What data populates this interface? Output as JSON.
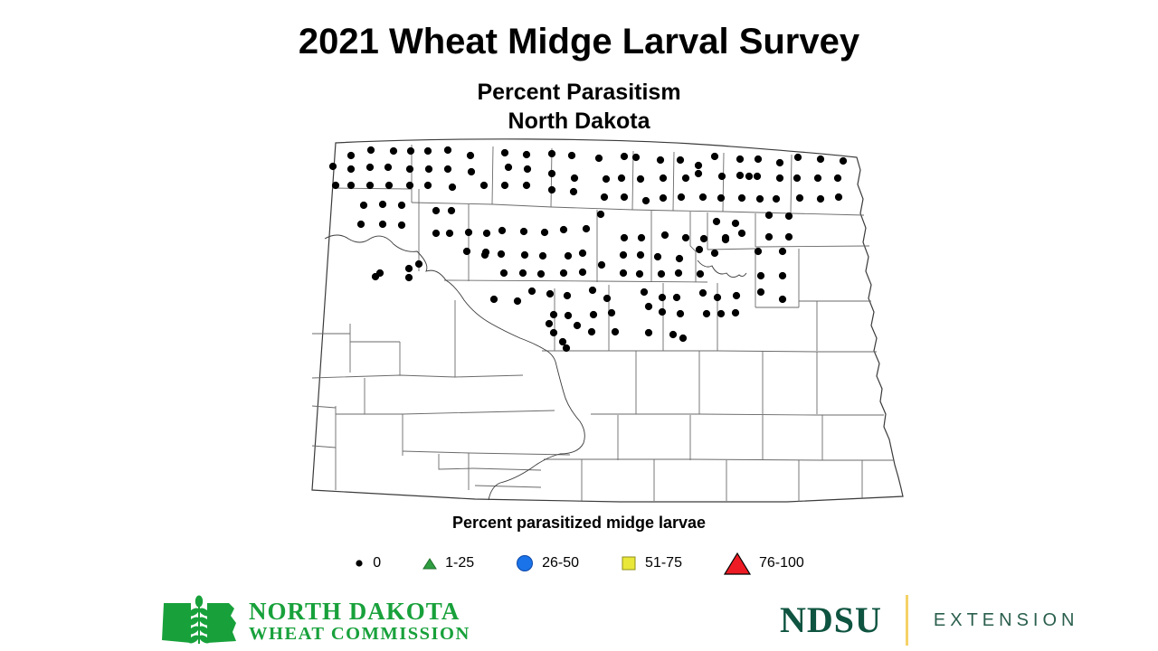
{
  "title": "2021 Wheat Midge Larval Survey",
  "subtitle_line1": "Percent Parasitism",
  "subtitle_line2": "North Dakota",
  "legend": {
    "title": "Percent parasitized midge larvae",
    "items": [
      {
        "symbol": "small-black-dot",
        "color": "#000000",
        "label": "0"
      },
      {
        "symbol": "small-green-triangle",
        "color": "#2f9e41",
        "label": "1-25"
      },
      {
        "symbol": "blue-circle",
        "color": "#1a73e8",
        "label": "26-50"
      },
      {
        "symbol": "yellow-square",
        "color": "#e9e73a",
        "label": "51-75"
      },
      {
        "symbol": "large-red-triangle",
        "color": "#ed1c24",
        "label": "76-100"
      }
    ]
  },
  "map": {
    "region": "North Dakota counties",
    "points_category": "0",
    "point_color": "#000000",
    "points": [
      [
        25,
        32
      ],
      [
        28,
        53
      ],
      [
        45,
        20
      ],
      [
        45,
        35
      ],
      [
        45,
        53
      ],
      [
        67,
        14
      ],
      [
        66,
        33
      ],
      [
        66,
        53
      ],
      [
        86,
        33
      ],
      [
        92,
        15
      ],
      [
        111,
        15
      ],
      [
        110,
        35
      ],
      [
        87,
        53
      ],
      [
        110,
        53
      ],
      [
        130,
        15
      ],
      [
        152,
        14
      ],
      [
        131,
        35
      ],
      [
        152,
        35
      ],
      [
        130,
        53
      ],
      [
        157,
        55
      ],
      [
        177,
        20
      ],
      [
        178,
        38
      ],
      [
        192,
        53
      ],
      [
        215,
        17
      ],
      [
        239,
        19
      ],
      [
        219,
        33
      ],
      [
        240,
        35
      ],
      [
        215,
        53
      ],
      [
        239,
        53
      ],
      [
        267,
        18
      ],
      [
        289,
        20
      ],
      [
        319,
        23
      ],
      [
        347,
        21
      ],
      [
        267,
        40
      ],
      [
        292,
        45
      ],
      [
        327,
        46
      ],
      [
        344,
        45
      ],
      [
        267,
        58
      ],
      [
        291,
        60
      ],
      [
        325,
        66
      ],
      [
        347,
        66
      ],
      [
        360,
        22
      ],
      [
        387,
        25
      ],
      [
        365,
        46
      ],
      [
        390,
        45
      ],
      [
        371,
        70
      ],
      [
        390,
        67
      ],
      [
        409,
        25
      ],
      [
        429,
        31
      ],
      [
        447,
        21
      ],
      [
        429,
        40
      ],
      [
        415,
        45
      ],
      [
        455,
        43
      ],
      [
        410,
        66
      ],
      [
        434,
        66
      ],
      [
        454,
        67
      ],
      [
        475,
        24
      ],
      [
        495,
        24
      ],
      [
        519,
        28
      ],
      [
        475,
        42
      ],
      [
        485,
        43
      ],
      [
        494,
        43
      ],
      [
        519,
        45
      ],
      [
        477,
        67
      ],
      [
        497,
        68
      ],
      [
        515,
        68
      ],
      [
        539,
        22
      ],
      [
        564,
        24
      ],
      [
        589,
        26
      ],
      [
        538,
        45
      ],
      [
        561,
        45
      ],
      [
        583,
        45
      ],
      [
        541,
        67
      ],
      [
        564,
        68
      ],
      [
        584,
        66
      ],
      [
        59,
        75
      ],
      [
        80,
        74
      ],
      [
        101,
        75
      ],
      [
        56,
        96
      ],
      [
        80,
        96
      ],
      [
        101,
        97
      ],
      [
        77,
        150
      ],
      [
        72,
        154
      ],
      [
        109,
        145
      ],
      [
        109,
        155
      ],
      [
        120,
        140
      ],
      [
        139,
        81
      ],
      [
        156,
        81
      ],
      [
        139,
        106
      ],
      [
        154,
        106
      ],
      [
        175,
        105
      ],
      [
        195,
        106
      ],
      [
        173,
        126
      ],
      [
        194,
        127
      ],
      [
        212,
        103
      ],
      [
        236,
        104
      ],
      [
        259,
        105
      ],
      [
        280,
        102
      ],
      [
        305,
        101
      ],
      [
        193,
        130
      ],
      [
        211,
        129
      ],
      [
        237,
        130
      ],
      [
        257,
        131
      ],
      [
        285,
        131
      ],
      [
        301,
        128
      ],
      [
        214,
        150
      ],
      [
        235,
        150
      ],
      [
        255,
        151
      ],
      [
        280,
        150
      ],
      [
        301,
        149
      ],
      [
        321,
        85
      ],
      [
        347,
        111
      ],
      [
        366,
        111
      ],
      [
        346,
        130
      ],
      [
        365,
        130
      ],
      [
        322,
        141
      ],
      [
        346,
        150
      ],
      [
        364,
        151
      ],
      [
        392,
        108
      ],
      [
        384,
        132
      ],
      [
        408,
        134
      ],
      [
        388,
        151
      ],
      [
        407,
        150
      ],
      [
        415,
        111
      ],
      [
        435,
        112
      ],
      [
        459,
        111
      ],
      [
        430,
        124
      ],
      [
        447,
        128
      ],
      [
        431,
        151
      ],
      [
        449,
        93
      ],
      [
        470,
        95
      ],
      [
        459,
        113
      ],
      [
        477,
        106
      ],
      [
        507,
        86
      ],
      [
        529,
        87
      ],
      [
        507,
        110
      ],
      [
        529,
        110
      ],
      [
        495,
        126
      ],
      [
        522,
        126
      ],
      [
        498,
        153
      ],
      [
        522,
        153
      ],
      [
        498,
        171
      ],
      [
        522,
        179
      ],
      [
        203,
        179
      ],
      [
        229,
        181
      ],
      [
        245,
        170
      ],
      [
        265,
        173
      ],
      [
        284,
        175
      ],
      [
        269,
        196
      ],
      [
        285,
        197
      ],
      [
        264,
        206
      ],
      [
        295,
        208
      ],
      [
        269,
        216
      ],
      [
        279,
        226
      ],
      [
        283,
        233
      ],
      [
        312,
        169
      ],
      [
        328,
        178
      ],
      [
        313,
        196
      ],
      [
        333,
        194
      ],
      [
        311,
        215
      ],
      [
        337,
        215
      ],
      [
        369,
        171
      ],
      [
        389,
        177
      ],
      [
        405,
        177
      ],
      [
        374,
        187
      ],
      [
        389,
        193
      ],
      [
        409,
        195
      ],
      [
        374,
        216
      ],
      [
        401,
        218
      ],
      [
        412,
        222
      ],
      [
        434,
        172
      ],
      [
        450,
        177
      ],
      [
        471,
        175
      ],
      [
        438,
        195
      ],
      [
        454,
        195
      ],
      [
        470,
        194
      ]
    ]
  },
  "footer": {
    "wheat_commission": {
      "line1": "NORTH DAKOTA",
      "line2": "WHEAT COMMISSION",
      "color": "#18a13b"
    },
    "ndsu": {
      "wordmark": "NDSU",
      "division": "EXTENSION",
      "color": "#0f5440",
      "divider_color": "#f5d268"
    }
  }
}
